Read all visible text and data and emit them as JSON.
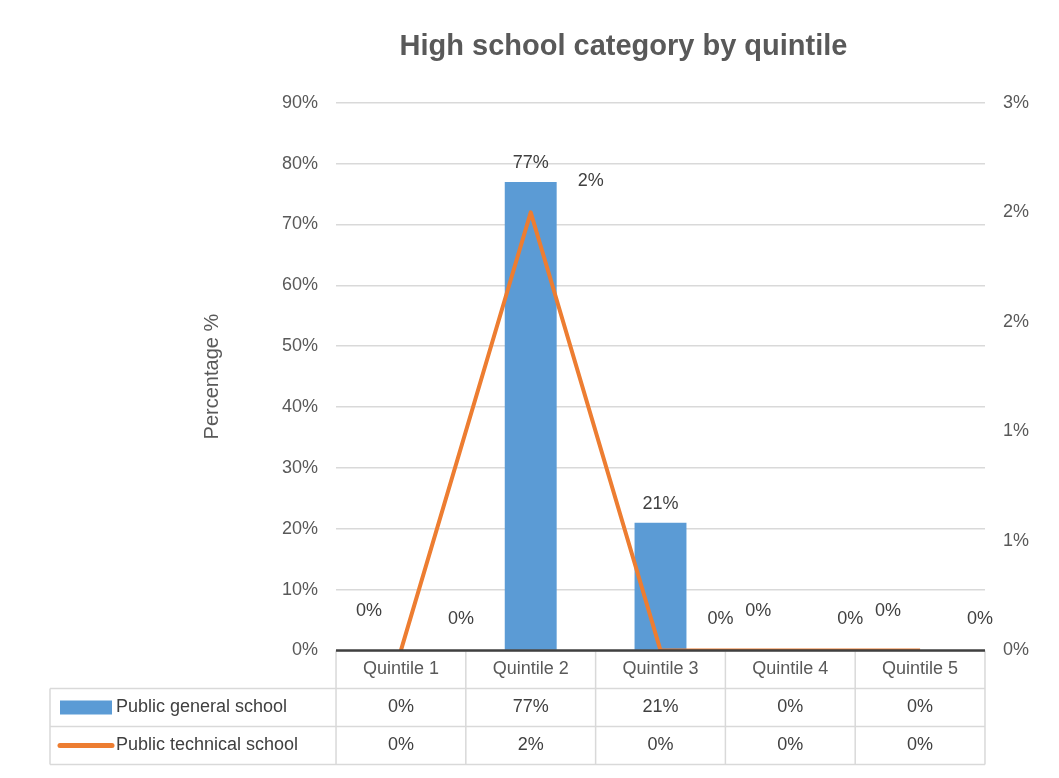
{
  "chart_data": {
    "type": "bar",
    "title": "High school category by quintile",
    "ylabel": "Percentage %",
    "categories": [
      "Quintile 1",
      "Quintile 2",
      "Quintile 3",
      "Quintile 4",
      "Quintile 5"
    ],
    "series": [
      {
        "name": "Public general school",
        "color": "#5b9bd5",
        "values": [
          0,
          77,
          21,
          0,
          0
        ],
        "value_labels": [
          "0%",
          "77%",
          "21%",
          "0%",
          "0%"
        ]
      },
      {
        "name": "Public technical school",
        "type": "line",
        "axis": "y2",
        "color": "#ed7d31",
        "values": [
          0,
          2.4,
          0,
          0,
          0
        ],
        "value_labels": [
          "0%",
          "2%",
          "0%",
          "0%",
          "0%"
        ]
      }
    ],
    "ylim": [
      0,
      90
    ],
    "yticks": [
      {
        "value": 0,
        "label": "0%"
      },
      {
        "value": 10,
        "label": "10%"
      },
      {
        "value": 20,
        "label": "20%"
      },
      {
        "value": 30,
        "label": "30%"
      },
      {
        "value": 40,
        "label": "40%"
      },
      {
        "value": 50,
        "label": "50%"
      },
      {
        "value": 60,
        "label": "60%"
      },
      {
        "value": 70,
        "label": "70%"
      },
      {
        "value": 80,
        "label": "80%"
      },
      {
        "value": 90,
        "label": "90%"
      }
    ],
    "y2lim": [
      0,
      3
    ],
    "y2ticks": [
      {
        "value": 0,
        "label": "0%"
      },
      {
        "value": 0.6,
        "label": "1%"
      },
      {
        "value": 1.2,
        "label": "1%"
      },
      {
        "value": 1.8,
        "label": "2%"
      },
      {
        "value": 2.4,
        "label": "2%"
      },
      {
        "value": 3,
        "label": "3%"
      }
    ],
    "grid": "y",
    "legend": "bottom",
    "marker": "none",
    "line_style": "solid"
  }
}
